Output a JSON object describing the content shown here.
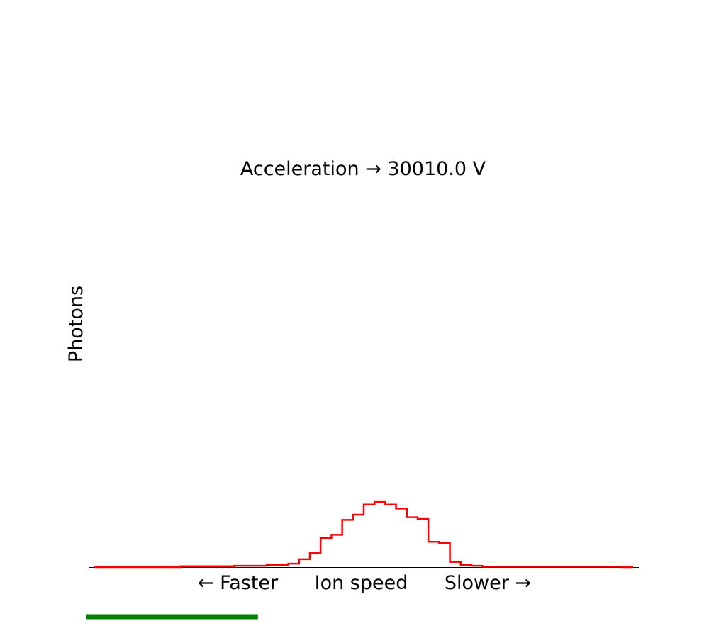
{
  "chart_data": {
    "type": "line",
    "step": "post",
    "title": "Acceleration → 30010.0 V",
    "xlabel": "← Faster      Ion speed      Slower →",
    "ylabel": "Photons",
    "xlim": [
      0,
      50
    ],
    "ylim": [
      0,
      100
    ],
    "grid": false,
    "ticks": false,
    "series": [
      {
        "color": "#ff0000",
        "x": [
          0,
          1,
          2,
          3,
          4,
          5,
          6,
          7,
          8,
          9,
          10,
          11,
          12,
          13,
          14,
          15,
          16,
          17,
          18,
          19,
          20,
          21,
          22,
          23,
          24,
          25,
          26,
          27,
          28,
          29,
          30,
          31,
          32,
          33,
          34,
          35,
          36,
          37,
          38,
          39,
          40,
          41,
          42,
          43,
          44,
          45,
          46,
          47,
          48,
          49,
          50
        ],
        "values": [
          0,
          0,
          0,
          0,
          0,
          0,
          0,
          0,
          0.2,
          0.2,
          0.2,
          0.2,
          0.2,
          0.3,
          0.3,
          0.3,
          0.5,
          0.5,
          0.8,
          1.8,
          3.2,
          6.6,
          7.4,
          10.8,
          12.0,
          14.3,
          14.9,
          14.3,
          13.4,
          11.4,
          11.0,
          5.8,
          5.5,
          1.2,
          0.5,
          0.3,
          0.1,
          0.1,
          0.1,
          0.1,
          0.1,
          0.1,
          0.1,
          0.1,
          0.1,
          0.1,
          0.1,
          0.1,
          0.1,
          0,
          0
        ]
      }
    ],
    "progress": {
      "color": "#008000",
      "value": 0.31
    }
  }
}
